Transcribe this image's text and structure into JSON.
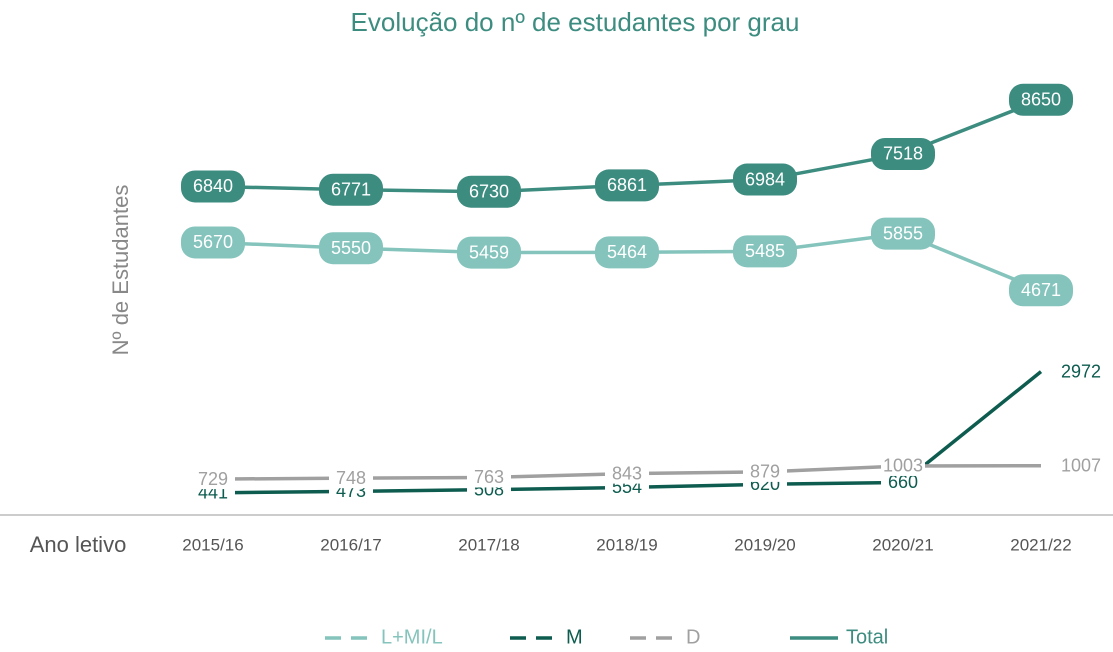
{
  "chart_data": {
    "type": "line",
    "title": "Evolução do nº de estudantes por grau",
    "ylabel": "Nº de Estudantes",
    "xlabel": "Ano letivo",
    "categories": [
      "2015/16",
      "2016/17",
      "2017/18",
      "2018/19",
      "2019/20",
      "2020/21",
      "2021/22"
    ],
    "ylim": [
      0,
      9000
    ],
    "legend": "bottom",
    "series": [
      {
        "name": "L+MI/L",
        "color": "#84c4bc",
        "label_box": true,
        "legend_dash": true,
        "values": [
          5670,
          5550,
          5459,
          5464,
          5485,
          5855,
          4671
        ]
      },
      {
        "name": "M",
        "color": "#0d5c4f",
        "label_box": false,
        "legend_dash": true,
        "values": [
          441,
          473,
          508,
          554,
          620,
          660,
          2972
        ]
      },
      {
        "name": "D",
        "color": "#a0a0a0",
        "label_box": false,
        "legend_dash": true,
        "values": [
          729,
          748,
          763,
          843,
          879,
          1003,
          1007
        ]
      },
      {
        "name": "Total",
        "color": "#3d8c80",
        "label_box": true,
        "legend_dash": false,
        "values": [
          6840,
          6771,
          6730,
          6861,
          6984,
          7518,
          8650
        ]
      }
    ]
  }
}
